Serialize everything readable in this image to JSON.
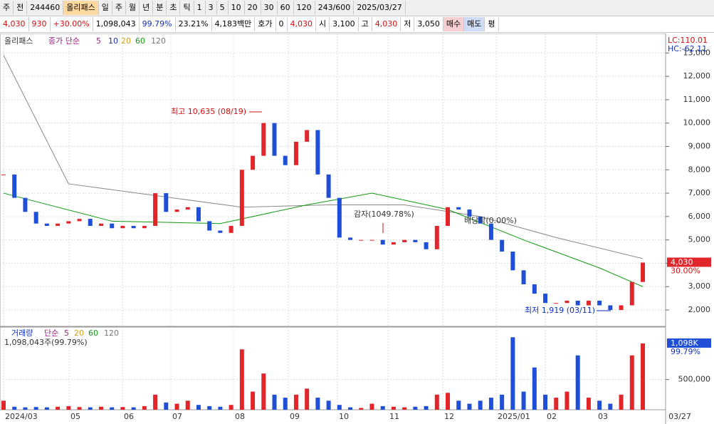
{
  "toolbar": {
    "row1": [
      "주",
      "전",
      "244460",
      "올리패스",
      "일",
      "주",
      "월",
      "년",
      "분",
      "초",
      "틱",
      "1",
      "3",
      "5",
      "10",
      "20",
      "30",
      "60",
      "120",
      "243/600",
      "2025/03/27"
    ],
    "row2": [
      "4,030",
      "930",
      "+30.00%",
      "1,098,043",
      "99.79%",
      "23.21%",
      "4,183백만",
      "호가",
      "0",
      "4,030",
      "시",
      "3,100",
      "고",
      "4,030",
      "저",
      "3,050",
      "매수",
      "매도",
      "평"
    ]
  },
  "price_panel": {
    "legend": [
      "올리패스",
      "종가 단순",
      "5",
      "10",
      "20",
      "60",
      "120"
    ],
    "legend_colors": [
      "#333333",
      "#a0208a",
      "#1f2fb0",
      "#d8a010",
      "#119911",
      "#777777"
    ],
    "lc": "LC:110.01",
    "hc": "HC:-62.11",
    "annotations": [
      "최고 10,635 (08/19)",
      "감자(1049.78%)",
      "배당락(0.00%)",
      "최저 1,919 (03/11)"
    ],
    "price_tag": "4,030",
    "change_tag": "30.00%",
    "ylim": [
      1300,
      13680
    ],
    "yticks": [
      {
        "value": 2000,
        "label": "2,000"
      },
      {
        "value": 3000,
        "label": "3,000"
      },
      {
        "value": 4000,
        "label": "4,000"
      },
      {
        "value": 5000,
        "label": "5,000"
      },
      {
        "value": 6000,
        "label": "6,000"
      },
      {
        "value": 7000,
        "label": "7,000"
      },
      {
        "value": 8000,
        "label": "8,000"
      },
      {
        "value": 9000,
        "label": "9,000"
      },
      {
        "value": 10000,
        "label": "10,000"
      },
      {
        "value": 11000,
        "label": "11,000"
      },
      {
        "value": 12000,
        "label": "12,000"
      },
      {
        "value": 13000,
        "label": "13,000"
      }
    ],
    "closes": [
      7800,
      6800,
      6200,
      5700,
      5600,
      5700,
      5800,
      5900,
      5600,
      5700,
      5500,
      5600,
      5500,
      5600,
      7000,
      6200,
      6300,
      6400,
      5800,
      5400,
      5300,
      5600,
      8000,
      8600,
      10000,
      8600,
      8200,
      9200,
      9700,
      7800,
      6800,
      5100,
      5000,
      5000,
      5000,
      4800,
      4900,
      5000,
      4900,
      4600,
      5600,
      6400,
      6300,
      6000,
      5700,
      5000,
      4500,
      3700,
      3100,
      2700,
      2300,
      2300,
      2400,
      2200,
      2400,
      2200,
      2000,
      2200,
      3200,
      4030
    ],
    "ma_lines": [
      {
        "color": "#888888",
        "x": [
          0,
          6,
          14,
          22,
          30,
          37,
          44,
          51,
          59
        ],
        "values": [
          12900,
          7400,
          6900,
          6400,
          6500,
          6500,
          6000,
          5100,
          4200
        ]
      },
      {
        "color": "#119911",
        "x": [
          0,
          10,
          20,
          28,
          34,
          41,
          48,
          55,
          59
        ],
        "values": [
          7000,
          5800,
          5700,
          6500,
          7000,
          6300,
          5000,
          3800,
          3000
        ]
      }
    ]
  },
  "volume_panel": {
    "legend": [
      "거래량",
      "단순",
      "5",
      "20",
      "60",
      "120"
    ],
    "summary": "1,098,043주(99.79%)",
    "volume_tag": "1,098K",
    "ratio_tag": "99.79%",
    "ylim": [
      0,
      1345000
    ],
    "yticks": [
      {
        "value": 500000,
        "label": "500,000"
      }
    ],
    "volumes": [
      150000,
      50000,
      40000,
      45000,
      40000,
      50000,
      60000,
      45000,
      40000,
      50000,
      40000,
      45000,
      40000,
      60000,
      250000,
      120000,
      100000,
      150000,
      80000,
      60000,
      50000,
      80000,
      1000000,
      300000,
      600000,
      250000,
      200000,
      250000,
      350000,
      200000,
      150000,
      80000,
      40000,
      30000,
      100000,
      60000,
      50000,
      40000,
      50000,
      60000,
      250000,
      280000,
      150000,
      100000,
      150000,
      200000,
      250000,
      1200000,
      300000,
      700000,
      250000,
      200000,
      300000,
      900000,
      200000,
      150000,
      100000,
      250000,
      900000,
      1098043
    ]
  },
  "date_axis": {
    "labels": [
      "2024/03",
      "05",
      "06",
      "07",
      "08",
      "09",
      "10",
      "11",
      "12",
      "2025/01",
      "02",
      "03",
      "03/27"
    ]
  }
}
